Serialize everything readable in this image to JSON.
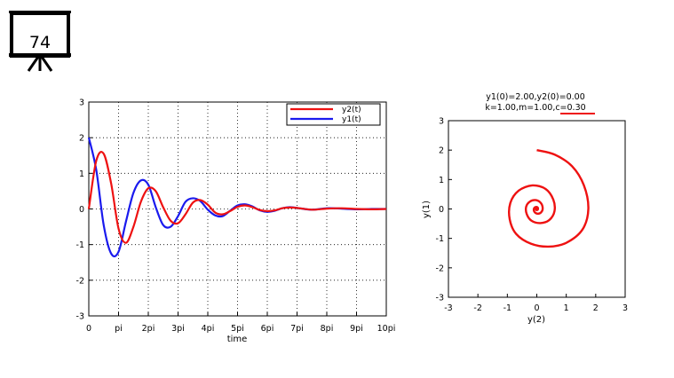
{
  "slide": {
    "number": "74",
    "icon": "presentation-board-icon"
  },
  "chart_data": [
    {
      "type": "line",
      "title": "",
      "xlabel": "time",
      "ylabel": "",
      "xlim": [
        "0",
        "10pi"
      ],
      "ylim": [
        -3,
        3
      ],
      "xticks": [
        "0",
        "pi",
        "2pi",
        "3pi",
        "4pi",
        "5pi",
        "6pi",
        "7pi",
        "8pi",
        "9pi",
        "10pi"
      ],
      "yticks": [
        "3",
        "2",
        "1",
        "0",
        "-1",
        "-2",
        "-3"
      ],
      "grid": true,
      "legend": "top-right",
      "series": [
        {
          "name": "y2(t)",
          "color": "#ee1111",
          "points_t_over_pi": [
            0,
            0.25,
            0.5,
            0.75,
            1,
            1.25,
            1.5,
            1.75,
            2,
            2.25,
            2.5,
            2.75,
            3,
            3.25,
            3.5,
            3.75,
            4,
            4.25,
            4.5,
            4.75,
            5,
            5.25,
            5.5,
            5.75,
            6,
            6.25,
            6.5,
            6.75,
            7,
            7.5,
            8,
            8.5,
            9,
            9.5,
            10
          ],
          "values": [
            0,
            1.35,
            1.55,
            0.72,
            -0.55,
            -0.95,
            -0.5,
            0.2,
            0.58,
            0.5,
            0.05,
            -0.33,
            -0.4,
            -0.15,
            0.18,
            0.25,
            0.12,
            -0.1,
            -0.15,
            -0.06,
            0.06,
            0.1,
            0.05,
            -0.03,
            -0.06,
            -0.04,
            0.02,
            0.04,
            0.03,
            -0.02,
            0.01,
            0.02,
            0,
            -0.01,
            0
          ]
        },
        {
          "name": "y1(t)",
          "color": "#1a1aee",
          "points_t_over_pi": [
            0,
            0.25,
            0.5,
            0.75,
            1,
            1.25,
            1.5,
            1.75,
            2,
            2.25,
            2.5,
            2.75,
            3,
            3.25,
            3.5,
            3.75,
            4,
            4.25,
            4.5,
            4.75,
            5,
            5.25,
            5.5,
            5.75,
            6,
            6.25,
            6.5,
            6.75,
            7,
            7.5,
            8,
            8.5,
            9,
            9.5,
            10
          ],
          "values": [
            2.0,
            1.1,
            -0.45,
            -1.25,
            -1.2,
            -0.35,
            0.45,
            0.8,
            0.68,
            0.05,
            -0.45,
            -0.5,
            -0.2,
            0.2,
            0.3,
            0.22,
            -0.02,
            -0.18,
            -0.2,
            -0.05,
            0.1,
            0.13,
            0.07,
            -0.04,
            -0.08,
            -0.05,
            0.02,
            0.05,
            0.03,
            -0.02,
            0.02,
            0.01,
            -0.01,
            0,
            0
          ]
        }
      ]
    },
    {
      "type": "line",
      "title": "y1(0)=2.00,y2(0)=0.00",
      "subtitle": "k=1.00,m=1.00,c=0.30",
      "xlabel": "y(2)",
      "ylabel": "y(1)",
      "xlim": [
        -3,
        3
      ],
      "ylim": [
        -3,
        3
      ],
      "xticks": [
        "-3",
        "-2",
        "-1",
        "0",
        "1",
        "2",
        "3"
      ],
      "yticks": [
        "3",
        "2",
        "1",
        "0",
        "-1",
        "-2",
        "-3"
      ],
      "grid": false,
      "series": [
        {
          "color": "#ee1111",
          "points": [
            [
              0,
              2.0
            ],
            [
              0.6,
              1.85
            ],
            [
              1.2,
              1.45
            ],
            [
              1.6,
              0.8
            ],
            [
              1.75,
              0
            ],
            [
              1.55,
              -0.7
            ],
            [
              1.0,
              -1.15
            ],
            [
              0.4,
              -1.28
            ],
            [
              -0.2,
              -1.18
            ],
            [
              -0.7,
              -0.85
            ],
            [
              -0.92,
              -0.35
            ],
            [
              -0.9,
              0.2
            ],
            [
              -0.62,
              0.62
            ],
            [
              -0.15,
              0.8
            ],
            [
              0.3,
              0.68
            ],
            [
              0.56,
              0.32
            ],
            [
              0.6,
              -0.08
            ],
            [
              0.42,
              -0.38
            ],
            [
              0.12,
              -0.48
            ],
            [
              -0.18,
              -0.4
            ],
            [
              -0.34,
              -0.18
            ],
            [
              -0.36,
              0.08
            ],
            [
              -0.22,
              0.26
            ],
            [
              -0.02,
              0.3
            ],
            [
              0.14,
              0.2
            ],
            [
              0.2,
              0.02
            ],
            [
              0.14,
              -0.12
            ],
            [
              0.02,
              -0.16
            ],
            [
              -0.08,
              -0.1
            ],
            [
              -0.1,
              0.0
            ],
            [
              -0.05,
              0.06
            ],
            [
              0.02,
              0.06
            ],
            [
              0.04,
              0.01
            ],
            [
              0.01,
              -0.02
            ],
            [
              0,
              0
            ]
          ]
        }
      ]
    }
  ]
}
